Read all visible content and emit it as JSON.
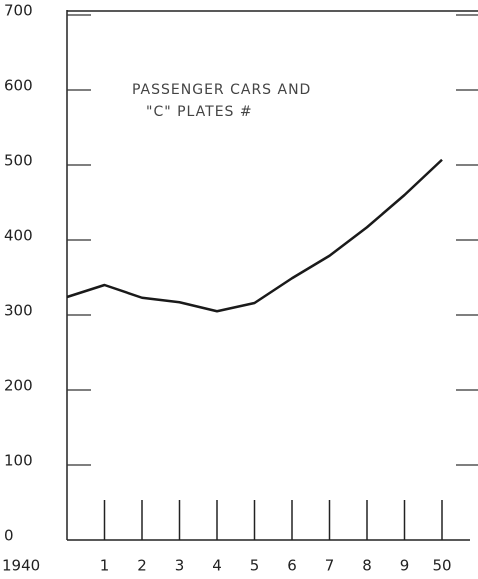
{
  "chart_data": {
    "type": "line",
    "annotation": [
      "PASSENGER CARS AND",
      "\"C\" PLATES #"
    ],
    "categories": [
      "1940",
      "1",
      "2",
      "3",
      "4",
      "5",
      "6",
      "7",
      "8",
      "9",
      "50"
    ],
    "series": [
      {
        "name": "Passenger cars and \"C\" plates",
        "color": "#1a1a1a",
        "values": [
          324,
          340,
          323,
          317,
          305,
          316,
          349,
          379,
          417,
          460,
          507
        ]
      }
    ],
    "ylim": [
      0,
      700
    ],
    "yticks": [
      0,
      100,
      200,
      300,
      400,
      500,
      600,
      700
    ]
  }
}
